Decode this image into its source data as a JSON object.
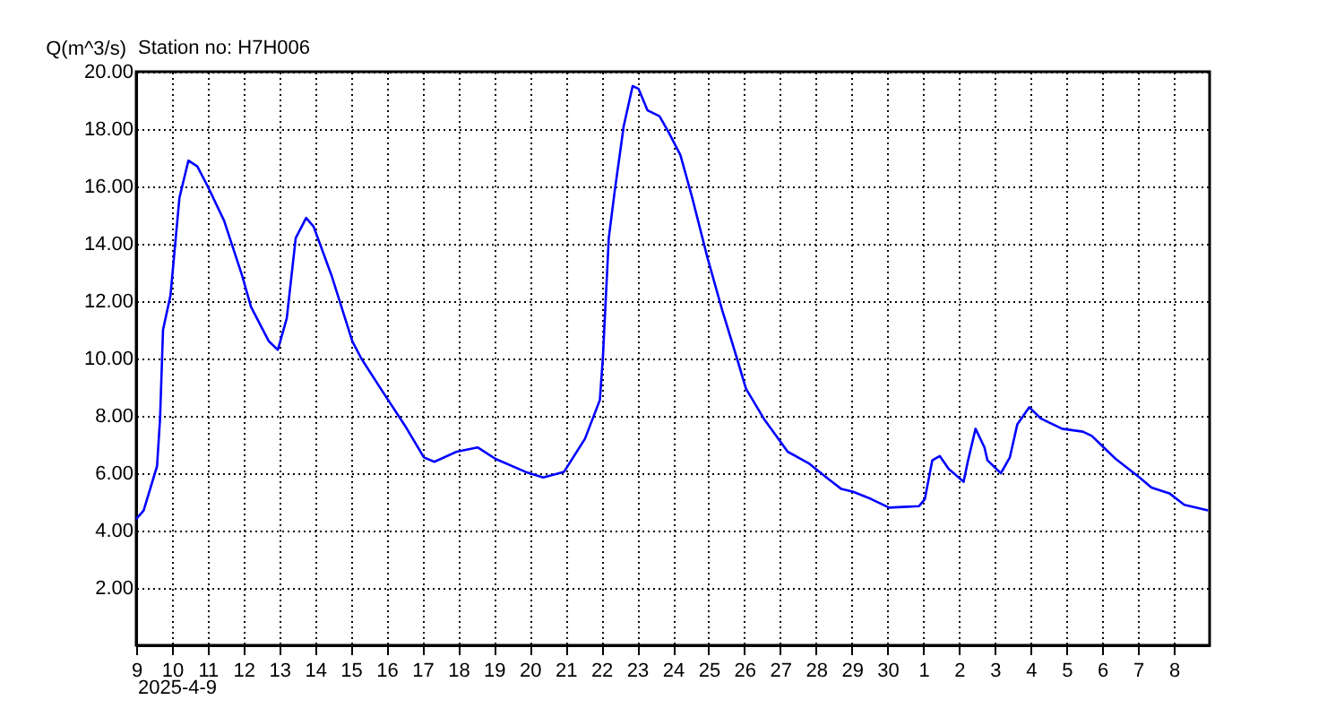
{
  "chart_data": {
    "type": "line",
    "title": "Station no: H7H006",
    "ylabel": "Q(m^3/s)",
    "annotations": [
      "2025-4-9"
    ],
    "x": [
      "2025-04-09T00:00",
      "2025-04-09T05:00",
      "2025-04-09T14:00",
      "2025-04-09T16:00",
      "2025-04-09T18:00",
      "2025-04-09T23:00",
      "2025-04-10T05:00",
      "2025-04-10T11:00",
      "2025-04-10T17:00",
      "2025-04-11T00:00",
      "2025-04-11T11:00",
      "2025-04-11T23:00",
      "2025-04-12T05:00",
      "2025-04-12T17:00",
      "2025-04-12T23:00",
      "2025-04-13T05:00",
      "2025-04-13T11:00",
      "2025-04-13T18:00",
      "2025-04-13T23:00",
      "2025-04-14T11:00",
      "2025-04-15T01:00",
      "2025-04-15T07:00",
      "2025-04-15T20:00",
      "2025-04-16T13:00",
      "2025-04-17T01:00",
      "2025-04-17T08:00",
      "2025-04-17T23:00",
      "2025-04-18T13:00",
      "2025-04-19T01:00",
      "2025-04-19T21:00",
      "2025-04-20T09:00",
      "2025-04-20T23:00",
      "2025-04-21T13:00",
      "2025-04-21T23:00",
      "2025-04-22T01:00",
      "2025-04-22T05:00",
      "2025-04-22T09:00",
      "2025-04-22T15:00",
      "2025-04-22T21:00",
      "2025-04-23T01:00",
      "2025-04-23T07:00",
      "2025-04-23T15:00",
      "2025-04-23T21:00",
      "2025-04-24T05:00",
      "2025-04-24T13:00",
      "2025-04-24T23:00",
      "2025-04-25T09:00",
      "2025-04-25T19:00",
      "2025-04-26T01:00",
      "2025-04-26T13:00",
      "2025-04-27T05:00",
      "2025-04-27T19:00",
      "2025-04-28T07:00",
      "2025-04-28T17:00",
      "2025-04-29T01:00",
      "2025-04-29T13:00",
      "2025-04-30T01:00",
      "2025-04-30T21:00",
      "2025-05-01T01:00",
      "2025-05-01T06:00",
      "2025-05-01T11:00",
      "2025-05-01T17:00",
      "2025-05-02T03:00",
      "2025-05-02T06:00",
      "2025-05-02T11:00",
      "2025-05-02T17:00",
      "2025-05-02T19:00",
      "2025-05-03T04:00",
      "2025-05-03T10:00",
      "2025-05-03T15:00",
      "2025-05-03T23:00",
      "2025-05-04T07:00",
      "2025-05-04T21:00",
      "2025-05-05T11:00",
      "2025-05-05T17:00",
      "2025-05-06T01:00",
      "2025-05-06T09:00",
      "2025-05-07T01:00",
      "2025-05-07T09:00",
      "2025-05-07T21:00",
      "2025-05-08T07:00",
      "2025-05-08T23:00"
    ],
    "series": [
      {
        "color": "#0000ff",
        "values": [
          4.4,
          4.7,
          6.25,
          7.9,
          11,
          12.2,
          15.6,
          16.9,
          16.7,
          16.0,
          14.8,
          12.9,
          11.8,
          10.6,
          10.3,
          11.4,
          14.2,
          14.9,
          14.6,
          12.9,
          10.6,
          10.0,
          8.95,
          7.6,
          6.55,
          6.4,
          6.75,
          6.9,
          6.5,
          6.05,
          5.85,
          6.05,
          7.2,
          8.55,
          10,
          14.2,
          15.85,
          18.1,
          19.5,
          19.4,
          18.65,
          18.45,
          17.9,
          17.1,
          15.6,
          13.55,
          11.7,
          10,
          8.95,
          7.9,
          6.75,
          6.35,
          5.85,
          5.45,
          5.35,
          5.1,
          4.8,
          4.85,
          5.1,
          6.45,
          6.6,
          6.15,
          5.7,
          6.45,
          7.55,
          6.9,
          6.45,
          6.0,
          6.55,
          7.7,
          8.3,
          7.9,
          7.55,
          7.45,
          7.3,
          6.9,
          6.5,
          5.85,
          5.5,
          5.3,
          4.9,
          4.7
        ]
      }
    ],
    "xlim": [
      "2025-04-09",
      "2025-05-09"
    ],
    "xticks": [
      {
        "value": "2025-04-09",
        "label": "9"
      },
      {
        "value": "2025-04-10",
        "label": "10"
      },
      {
        "value": "2025-04-11",
        "label": "11"
      },
      {
        "value": "2025-04-12",
        "label": "12"
      },
      {
        "value": "2025-04-13",
        "label": "13"
      },
      {
        "value": "2025-04-14",
        "label": "14"
      },
      {
        "value": "2025-04-15",
        "label": "15"
      },
      {
        "value": "2025-04-16",
        "label": "16"
      },
      {
        "value": "2025-04-17",
        "label": "17"
      },
      {
        "value": "2025-04-18",
        "label": "18"
      },
      {
        "value": "2025-04-19",
        "label": "19"
      },
      {
        "value": "2025-04-20",
        "label": "20"
      },
      {
        "value": "2025-04-21",
        "label": "21"
      },
      {
        "value": "2025-04-22",
        "label": "22"
      },
      {
        "value": "2025-04-23",
        "label": "23"
      },
      {
        "value": "2025-04-24",
        "label": "24"
      },
      {
        "value": "2025-04-25",
        "label": "25"
      },
      {
        "value": "2025-04-26",
        "label": "26"
      },
      {
        "value": "2025-04-27",
        "label": "27"
      },
      {
        "value": "2025-04-28",
        "label": "28"
      },
      {
        "value": "2025-04-29",
        "label": "29"
      },
      {
        "value": "2025-04-30",
        "label": "30"
      },
      {
        "value": "2025-05-01",
        "label": "1"
      },
      {
        "value": "2025-05-02",
        "label": "2"
      },
      {
        "value": "2025-05-03",
        "label": "3"
      },
      {
        "value": "2025-05-04",
        "label": "4"
      },
      {
        "value": "2025-05-05",
        "label": "5"
      },
      {
        "value": "2025-05-06",
        "label": "6"
      },
      {
        "value": "2025-05-07",
        "label": "7"
      },
      {
        "value": "2025-05-08",
        "label": "8"
      }
    ],
    "ylim": [
      0,
      20
    ],
    "yticks": [
      {
        "value": 0,
        "label": null
      },
      {
        "value": 2,
        "label": "2.00"
      },
      {
        "value": 4,
        "label": "4.00"
      },
      {
        "value": 6,
        "label": "6.00"
      },
      {
        "value": 8,
        "label": "8.00"
      },
      {
        "value": 10,
        "label": "10.00"
      },
      {
        "value": 12,
        "label": "12.00"
      },
      {
        "value": 14,
        "label": "14.00"
      },
      {
        "value": 16,
        "label": "16.00"
      },
      {
        "value": 18,
        "label": "18.00"
      },
      {
        "value": 20,
        "label": "20.00"
      }
    ],
    "grid": true,
    "line_style": "solid",
    "marker": "none",
    "legend": false
  }
}
